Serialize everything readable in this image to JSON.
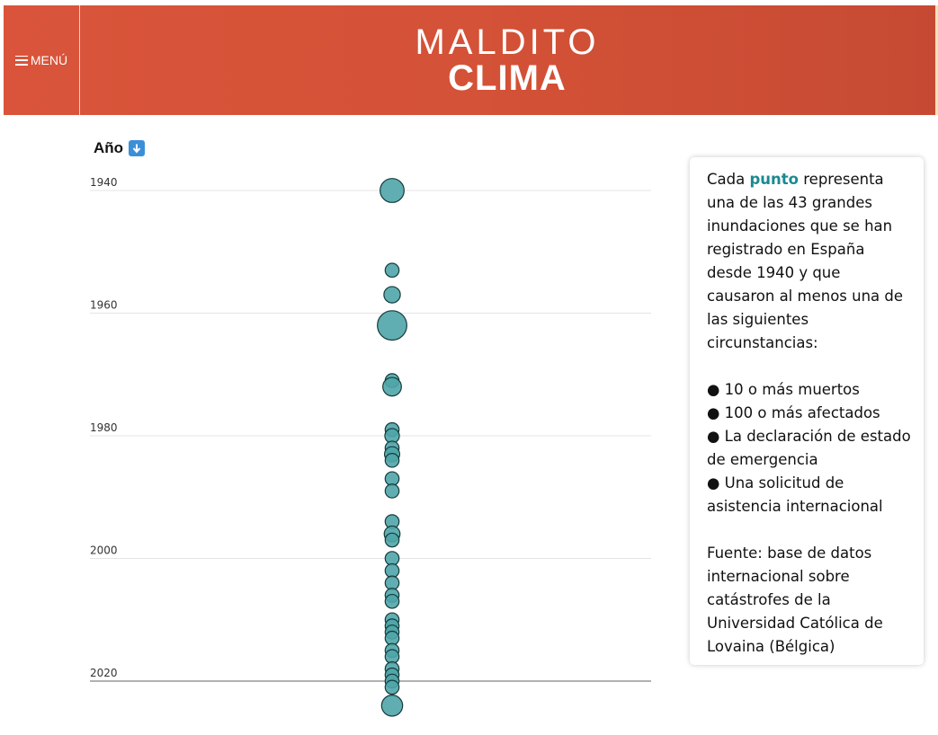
{
  "header": {
    "menu_label": "MENÚ",
    "logo_line1": "MALDITO",
    "logo_line2": "CLIMA"
  },
  "chart_data": {
    "type": "scatter",
    "ylabel": "Año",
    "ytick_labels": [
      "1940",
      "1960",
      "1980",
      "2000",
      "2020"
    ],
    "ylim": [
      1940,
      2020
    ],
    "y_inverted": true,
    "grid": true,
    "color": "#4fa5a8",
    "points": [
      {
        "year": 1940,
        "size": 3.0
      },
      {
        "year": 1953,
        "size": 1.0
      },
      {
        "year": 1957,
        "size": 1.4
      },
      {
        "year": 1962,
        "size": 4.5
      },
      {
        "year": 1971,
        "size": 1.0
      },
      {
        "year": 1972,
        "size": 1.8
      },
      {
        "year": 1979,
        "size": 1.0
      },
      {
        "year": 1980,
        "size": 1.1
      },
      {
        "year": 1982,
        "size": 1.0
      },
      {
        "year": 1983,
        "size": 1.2
      },
      {
        "year": 1984,
        "size": 1.0
      },
      {
        "year": 1987,
        "size": 1.0
      },
      {
        "year": 1989,
        "size": 1.0
      },
      {
        "year": 1994,
        "size": 1.0
      },
      {
        "year": 1996,
        "size": 1.3
      },
      {
        "year": 1997,
        "size": 1.0
      },
      {
        "year": 2000,
        "size": 1.0
      },
      {
        "year": 2002,
        "size": 1.0
      },
      {
        "year": 2004,
        "size": 1.0
      },
      {
        "year": 2006,
        "size": 1.0
      },
      {
        "year": 2007,
        "size": 1.0
      },
      {
        "year": 2010,
        "size": 1.0
      },
      {
        "year": 2011,
        "size": 1.0
      },
      {
        "year": 2012,
        "size": 1.0
      },
      {
        "year": 2013,
        "size": 1.0
      },
      {
        "year": 2015,
        "size": 1.0
      },
      {
        "year": 2016,
        "size": 1.0
      },
      {
        "year": 2018,
        "size": 1.0
      },
      {
        "year": 2019,
        "size": 1.0
      },
      {
        "year": 2020,
        "size": 1.0
      },
      {
        "year": 2021,
        "size": 1.0
      },
      {
        "year": 2024,
        "size": 2.3
      }
    ]
  },
  "info": {
    "p1_before": "Cada ",
    "p1_highlight": "punto",
    "p1_after": " representa una de las 43 grandes inundaciones que se han registrado en España desde 1940 y que causaron al menos una de las siguientes circunstancias:",
    "bullets": [
      "● 10 o más muertos",
      "● 100 o más afectados",
      "● La declaración de estado de emergencia",
      "● Una solicitud de asistencia internacional"
    ],
    "source": "Fuente: base de datos internacional sobre catástrofes de la Universidad Católica de Lovaina (Bélgica)"
  }
}
